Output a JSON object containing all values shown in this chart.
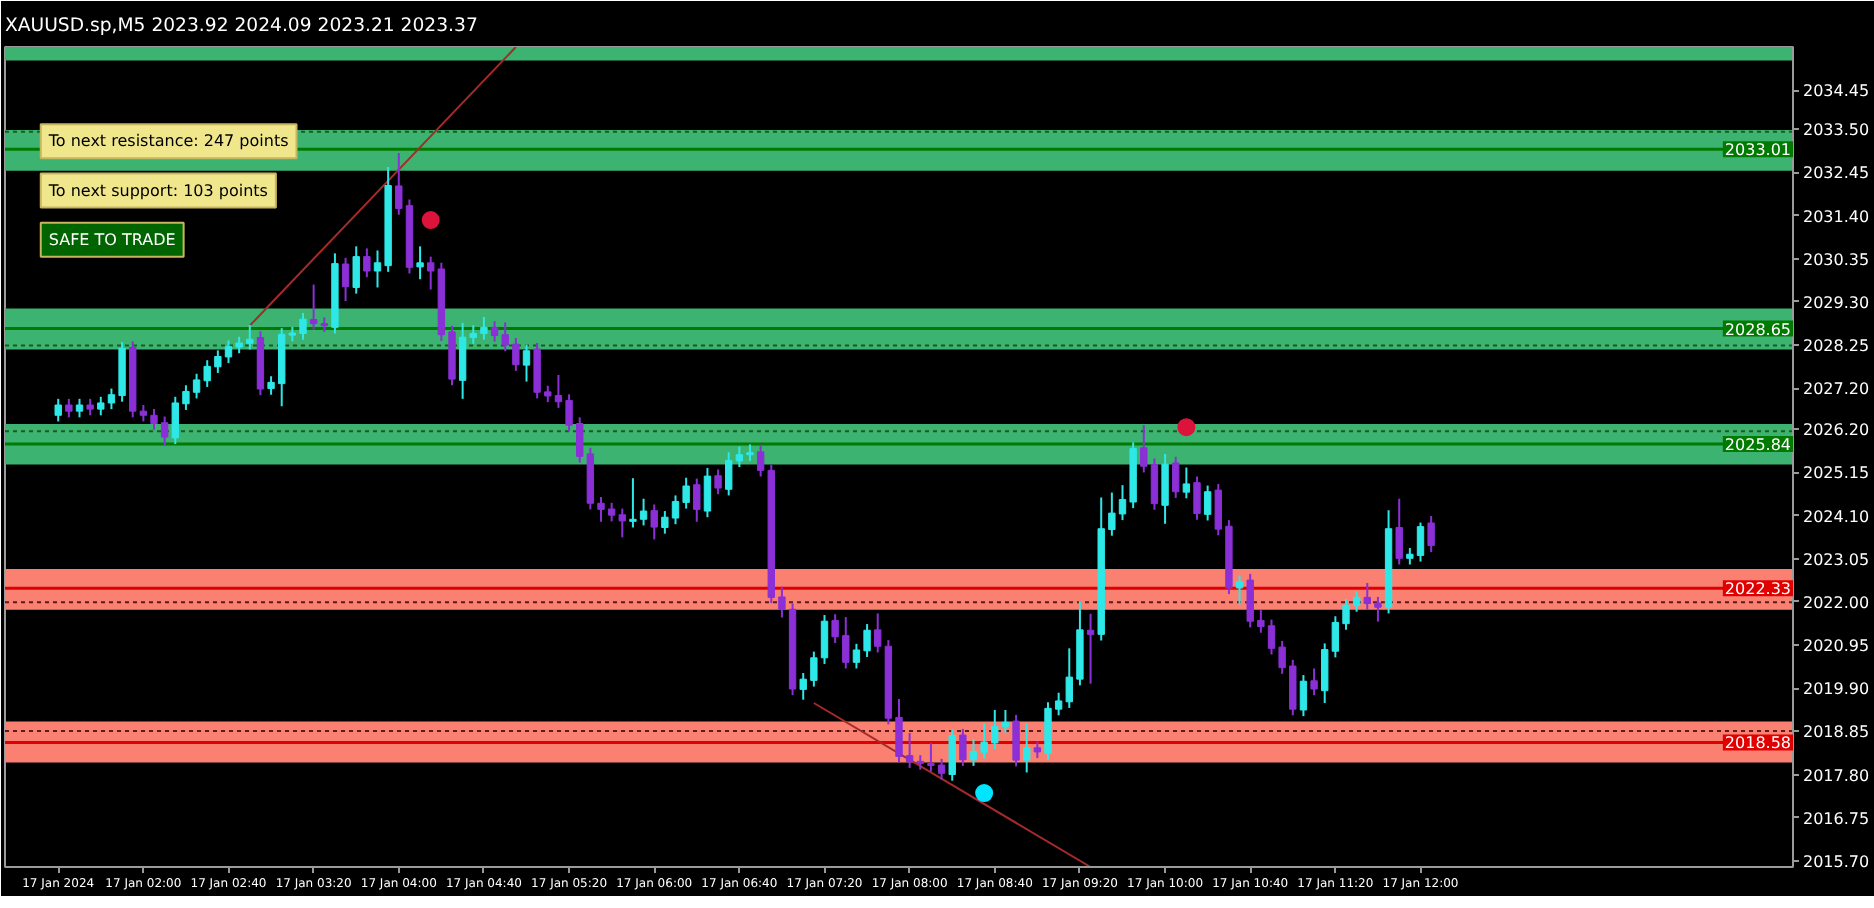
{
  "chart_data": {
    "type": "candlestick",
    "title": "XAUUSD.sp,M5 2023.92 2024.09 2023.21 2023.37",
    "x": [
      "2024-01-17T01:20",
      "2024-01-17T01:25",
      "2024-01-17T01:30",
      "2024-01-17T01:35",
      "2024-01-17T01:40",
      "2024-01-17T01:45",
      "2024-01-17T01:50",
      "2024-01-17T01:55",
      "2024-01-17T02:00",
      "2024-01-17T02:05",
      "2024-01-17T02:10",
      "2024-01-17T02:15",
      "2024-01-17T02:20",
      "2024-01-17T02:25",
      "2024-01-17T02:30",
      "2024-01-17T02:35",
      "2024-01-17T02:40",
      "2024-01-17T02:45",
      "2024-01-17T02:50",
      "2024-01-17T02:55",
      "2024-01-17T03:00",
      "2024-01-17T03:05",
      "2024-01-17T03:10",
      "2024-01-17T03:15",
      "2024-01-17T03:20",
      "2024-01-17T03:25",
      "2024-01-17T03:30",
      "2024-01-17T03:35",
      "2024-01-17T03:40",
      "2024-01-17T03:45",
      "2024-01-17T03:50",
      "2024-01-17T03:55",
      "2024-01-17T04:00",
      "2024-01-17T04:05",
      "2024-01-17T04:10",
      "2024-01-17T04:15",
      "2024-01-17T04:20",
      "2024-01-17T04:25",
      "2024-01-17T04:30",
      "2024-01-17T04:35",
      "2024-01-17T04:40",
      "2024-01-17T04:45",
      "2024-01-17T04:50",
      "2024-01-17T04:55",
      "2024-01-17T05:00",
      "2024-01-17T05:05",
      "2024-01-17T05:10",
      "2024-01-17T05:15",
      "2024-01-17T05:20",
      "2024-01-17T05:25",
      "2024-01-17T05:30",
      "2024-01-17T05:35",
      "2024-01-17T05:40",
      "2024-01-17T05:45",
      "2024-01-17T05:50",
      "2024-01-17T05:55",
      "2024-01-17T06:00",
      "2024-01-17T06:05",
      "2024-01-17T06:10",
      "2024-01-17T06:15",
      "2024-01-17T06:20",
      "2024-01-17T06:25",
      "2024-01-17T06:30",
      "2024-01-17T06:35",
      "2024-01-17T06:40",
      "2024-01-17T06:45",
      "2024-01-17T06:50",
      "2024-01-17T06:55",
      "2024-01-17T07:00",
      "2024-01-17T07:05",
      "2024-01-17T07:10",
      "2024-01-17T07:15",
      "2024-01-17T07:20",
      "2024-01-17T07:25",
      "2024-01-17T07:30",
      "2024-01-17T07:35",
      "2024-01-17T07:40",
      "2024-01-17T07:45",
      "2024-01-17T07:50",
      "2024-01-17T07:55",
      "2024-01-17T08:00",
      "2024-01-17T08:05",
      "2024-01-17T08:10",
      "2024-01-17T08:15",
      "2024-01-17T08:20",
      "2024-01-17T08:25",
      "2024-01-17T08:30",
      "2024-01-17T08:35",
      "2024-01-17T08:40",
      "2024-01-17T08:45",
      "2024-01-17T08:50",
      "2024-01-17T08:55",
      "2024-01-17T09:00",
      "2024-01-17T09:05",
      "2024-01-17T09:10",
      "2024-01-17T09:15",
      "2024-01-17T09:20",
      "2024-01-17T09:25",
      "2024-01-17T09:30",
      "2024-01-17T09:35",
      "2024-01-17T09:40",
      "2024-01-17T09:45",
      "2024-01-17T09:50",
      "2024-01-17T09:55",
      "2024-01-17T10:00",
      "2024-01-17T10:05",
      "2024-01-17T10:10",
      "2024-01-17T10:15",
      "2024-01-17T10:20",
      "2024-01-17T10:25",
      "2024-01-17T10:30",
      "2024-01-17T10:35",
      "2024-01-17T10:40",
      "2024-01-17T10:45",
      "2024-01-17T10:50",
      "2024-01-17T10:55",
      "2024-01-17T11:00",
      "2024-01-17T11:05",
      "2024-01-17T11:10",
      "2024-01-17T11:15",
      "2024-01-17T11:20",
      "2024-01-17T11:25",
      "2024-01-17T11:30",
      "2024-01-17T11:35",
      "2024-01-17T11:40",
      "2024-01-17T11:45",
      "2024-01-17T11:50",
      "2024-01-17T11:55",
      "2024-01-17T12:00",
      "2024-01-17T12:05"
    ],
    "ohlc": [
      [
        2026.54,
        2026.94,
        2026.39,
        2026.79
      ],
      [
        2026.79,
        2026.94,
        2026.49,
        2026.64
      ],
      [
        2026.64,
        2026.94,
        2026.49,
        2026.79
      ],
      [
        2026.79,
        2026.94,
        2026.54,
        2026.69
      ],
      [
        2026.69,
        2026.99,
        2026.54,
        2026.84
      ],
      [
        2026.84,
        2027.19,
        2026.69,
        2027.04
      ],
      [
        2027.02,
        2028.32,
        2026.87,
        2028.17
      ],
      [
        2028.19,
        2028.34,
        2026.49,
        2026.64
      ],
      [
        2026.64,
        2026.79,
        2026.39,
        2026.54
      ],
      [
        2026.54,
        2026.69,
        2026.19,
        2026.34
      ],
      [
        2026.36,
        2026.51,
        2025.81,
        2026.01
      ],
      [
        2025.99,
        2026.99,
        2025.84,
        2026.84
      ],
      [
        2026.82,
        2027.27,
        2026.67,
        2027.12
      ],
      [
        2027.1,
        2027.55,
        2026.95,
        2027.4
      ],
      [
        2027.38,
        2027.88,
        2027.23,
        2027.73
      ],
      [
        2027.72,
        2028.12,
        2027.57,
        2027.97
      ],
      [
        2027.96,
        2028.36,
        2027.81,
        2028.21
      ],
      [
        2028.2,
        2028.45,
        2028.05,
        2028.3
      ],
      [
        2028.29,
        2028.74,
        2028.14,
        2028.39
      ],
      [
        2028.43,
        2028.58,
        2027.03,
        2027.18
      ],
      [
        2027.19,
        2027.49,
        2027.04,
        2027.34
      ],
      [
        2027.31,
        2028.66,
        2026.76,
        2028.51
      ],
      [
        2028.49,
        2028.69,
        2028.34,
        2028.54
      ],
      [
        2028.53,
        2029.03,
        2028.38,
        2028.88
      ],
      [
        2028.87,
        2029.72,
        2028.62,
        2028.77
      ],
      [
        2028.77,
        2028.92,
        2028.57,
        2028.72
      ],
      [
        2028.68,
        2030.48,
        2028.53,
        2030.23
      ],
      [
        2030.22,
        2030.37,
        2029.32,
        2029.67
      ],
      [
        2029.65,
        2030.65,
        2029.5,
        2030.4
      ],
      [
        2030.4,
        2030.6,
        2029.9,
        2030.05
      ],
      [
        2030.05,
        2030.55,
        2029.65,
        2030.25
      ],
      [
        2030.18,
        2032.58,
        2030.03,
        2032.13
      ],
      [
        2032.12,
        2032.92,
        2031.42,
        2031.57
      ],
      [
        2031.64,
        2031.79,
        2029.99,
        2030.14
      ],
      [
        2030.15,
        2030.65,
        2029.85,
        2030.25
      ],
      [
        2030.25,
        2030.4,
        2029.6,
        2030.05
      ],
      [
        2030.1,
        2030.25,
        2028.35,
        2028.5
      ],
      [
        2028.57,
        2028.72,
        2027.27,
        2027.42
      ],
      [
        2027.39,
        2028.79,
        2026.94,
        2028.44
      ],
      [
        2028.43,
        2028.73,
        2028.28,
        2028.53
      ],
      [
        2028.53,
        2028.93,
        2028.38,
        2028.68
      ],
      [
        2028.68,
        2028.83,
        2028.33,
        2028.48
      ],
      [
        2028.5,
        2028.8,
        2028.1,
        2028.25
      ],
      [
        2028.27,
        2028.42,
        2027.62,
        2027.77
      ],
      [
        2027.76,
        2028.26,
        2027.36,
        2028.11
      ],
      [
        2028.15,
        2028.3,
        2026.95,
        2027.1
      ],
      [
        2027.11,
        2027.26,
        2026.86,
        2027.01
      ],
      [
        2027.02,
        2027.52,
        2026.72,
        2026.87
      ],
      [
        2026.9,
        2027.05,
        2026.15,
        2026.3
      ],
      [
        2026.34,
        2026.49,
        2025.39,
        2025.54
      ],
      [
        2025.6,
        2025.75,
        2024.25,
        2024.4
      ],
      [
        2024.4,
        2024.55,
        2023.95,
        2024.25
      ],
      [
        2024.26,
        2024.41,
        2023.96,
        2024.11
      ],
      [
        2024.12,
        2024.27,
        2023.57,
        2023.97
      ],
      [
        2023.96,
        2025.01,
        2023.81,
        2024.01
      ],
      [
        2024.01,
        2024.51,
        2023.86,
        2024.21
      ],
      [
        2024.22,
        2024.37,
        2023.52,
        2023.82
      ],
      [
        2023.81,
        2024.21,
        2023.66,
        2024.06
      ],
      [
        2024.04,
        2024.59,
        2023.89,
        2024.44
      ],
      [
        2024.42,
        2025.02,
        2024.27,
        2024.82
      ],
      [
        2024.85,
        2025.0,
        2023.95,
        2024.25
      ],
      [
        2024.21,
        2025.26,
        2024.06,
        2025.06
      ],
      [
        2025.07,
        2025.22,
        2024.62,
        2024.77
      ],
      [
        2024.74,
        2025.64,
        2024.59,
        2025.44
      ],
      [
        2025.43,
        2025.78,
        2025.28,
        2025.58
      ],
      [
        2025.58,
        2025.83,
        2025.43,
        2025.63
      ],
      [
        2025.65,
        2025.8,
        2025.05,
        2025.2
      ],
      [
        2025.2,
        2025.34,
        2021.97,
        2022.11
      ],
      [
        2022.12,
        2022.37,
        2021.62,
        2021.82
      ],
      [
        2021.82,
        2021.96,
        2019.73,
        2019.88
      ],
      [
        2019.87,
        2020.27,
        2019.62,
        2020.12
      ],
      [
        2020.09,
        2020.79,
        2019.94,
        2020.64
      ],
      [
        2020.64,
        2021.68,
        2020.49,
        2021.53
      ],
      [
        2021.55,
        2021.7,
        2021.0,
        2021.15
      ],
      [
        2021.18,
        2021.63,
        2020.38,
        2020.53
      ],
      [
        2020.53,
        2020.98,
        2020.38,
        2020.83
      ],
      [
        2020.81,
        2021.46,
        2020.66,
        2021.31
      ],
      [
        2021.32,
        2021.72,
        2020.77,
        2020.92
      ],
      [
        2020.92,
        2021.07,
        2019.02,
        2019.17
      ],
      [
        2019.19,
        2019.64,
        2018.09,
        2018.24
      ],
      [
        2018.26,
        2018.81,
        2017.96,
        2018.11
      ],
      [
        2018.12,
        2018.27,
        2017.92,
        2018.07
      ],
      [
        2018.07,
        2018.57,
        2017.87,
        2018.02
      ],
      [
        2018.03,
        2018.18,
        2017.68,
        2017.83
      ],
      [
        2017.8,
        2018.9,
        2017.65,
        2018.75
      ],
      [
        2018.76,
        2018.91,
        2018.01,
        2018.16
      ],
      [
        2018.16,
        2018.66,
        2018.01,
        2018.36
      ],
      [
        2018.34,
        2019.04,
        2018.19,
        2018.59
      ],
      [
        2018.57,
        2019.37,
        2018.42,
        2018.97
      ],
      [
        2018.97,
        2019.37,
        2018.82,
        2019.07
      ],
      [
        2019.1,
        2019.25,
        2018.0,
        2018.15
      ],
      [
        2018.15,
        2019.05,
        2017.85,
        2018.45
      ],
      [
        2018.45,
        2018.6,
        2018.2,
        2018.35
      ],
      [
        2018.31,
        2019.56,
        2018.16,
        2019.41
      ],
      [
        2019.39,
        2019.79,
        2019.24,
        2019.59
      ],
      [
        2019.57,
        2020.87,
        2019.42,
        2020.17
      ],
      [
        2020.12,
        2022.02,
        2019.97,
        2021.32
      ],
      [
        2021.31,
        2021.71,
        2020.01,
        2021.21
      ],
      [
        2021.21,
        2024.54,
        2021.06,
        2023.78
      ],
      [
        2023.76,
        2024.66,
        2023.61,
        2024.16
      ],
      [
        2024.14,
        2024.84,
        2023.99,
        2024.49
      ],
      [
        2024.43,
        2025.88,
        2024.28,
        2025.73
      ],
      [
        2025.75,
        2026.3,
        2025.15,
        2025.3
      ],
      [
        2025.34,
        2025.49,
        2024.24,
        2024.39
      ],
      [
        2024.35,
        2025.6,
        2023.9,
        2025.35
      ],
      [
        2025.38,
        2025.53,
        2024.53,
        2024.68
      ],
      [
        2024.67,
        2025.27,
        2024.52,
        2024.87
      ],
      [
        2024.9,
        2025.05,
        2024.0,
        2024.15
      ],
      [
        2024.13,
        2024.83,
        2023.98,
        2024.68
      ],
      [
        2024.72,
        2024.87,
        2023.62,
        2023.77
      ],
      [
        2023.84,
        2023.99,
        2022.19,
        2022.34
      ],
      [
        2022.34,
        2022.64,
        2021.94,
        2022.49
      ],
      [
        2022.53,
        2022.68,
        2021.38,
        2021.53
      ],
      [
        2021.55,
        2021.8,
        2021.25,
        2021.4
      ],
      [
        2021.42,
        2021.57,
        2020.72,
        2020.87
      ],
      [
        2020.9,
        2021.05,
        2020.25,
        2020.4
      ],
      [
        2020.44,
        2020.59,
        2019.24,
        2019.39
      ],
      [
        2019.37,
        2020.22,
        2019.22,
        2020.07
      ],
      [
        2020.08,
        2020.38,
        2019.73,
        2019.88
      ],
      [
        2019.84,
        2020.99,
        2019.54,
        2020.84
      ],
      [
        2020.8,
        2021.65,
        2020.65,
        2021.5
      ],
      [
        2021.47,
        2022.07,
        2021.32,
        2021.92
      ],
      [
        2021.91,
        2022.26,
        2021.76,
        2022.11
      ],
      [
        2022.11,
        2022.46,
        2021.81,
        2021.96
      ],
      [
        2021.97,
        2022.12,
        2021.52,
        2021.87
      ],
      [
        2021.87,
        2024.23,
        2021.72,
        2023.78
      ],
      [
        2023.81,
        2024.51,
        2022.91,
        2023.06
      ],
      [
        2023.06,
        2023.31,
        2022.91,
        2023.16
      ],
      [
        2023.13,
        2023.93,
        2022.98,
        2023.83
      ],
      [
        2023.92,
        2024.09,
        2023.21,
        2023.37
      ]
    ],
    "colors": [
      "#2ee8e8",
      "#8b2fd6",
      "#2ee8e8",
      "#8b2fd6",
      "#2ee8e8",
      "#2ee8e8",
      "#2ee8e8",
      "#8b2fd6",
      "#8b2fd6",
      "#8b2fd6",
      "#8b2fd6",
      "#2ee8e8",
      "#2ee8e8",
      "#2ee8e8",
      "#2ee8e8",
      "#2ee8e8",
      "#2ee8e8",
      "#2ee8e8",
      "#2ee8e8",
      "#8b2fd6",
      "#2ee8e8",
      "#2ee8e8",
      "#2ee8e8",
      "#2ee8e8",
      "#8b2fd6",
      "#8b2fd6",
      "#2ee8e8",
      "#8b2fd6",
      "#2ee8e8",
      "#8b2fd6",
      "#2ee8e8",
      "#2ee8e8",
      "#8b2fd6",
      "#8b2fd6",
      "#2ee8e8",
      "#8b2fd6",
      "#8b2fd6",
      "#8b2fd6",
      "#2ee8e8",
      "#2ee8e8",
      "#2ee8e8",
      "#8b2fd6",
      "#8b2fd6",
      "#8b2fd6",
      "#2ee8e8",
      "#8b2fd6",
      "#8b2fd6",
      "#8b2fd6",
      "#8b2fd6",
      "#8b2fd6",
      "#8b2fd6",
      "#8b2fd6",
      "#8b2fd6",
      "#8b2fd6",
      "#2ee8e8",
      "#2ee8e8",
      "#8b2fd6",
      "#2ee8e8",
      "#2ee8e8",
      "#2ee8e8",
      "#8b2fd6",
      "#2ee8e8",
      "#8b2fd6",
      "#2ee8e8",
      "#2ee8e8",
      "#2ee8e8",
      "#8b2fd6",
      "#8b2fd6",
      "#8b2fd6",
      "#8b2fd6",
      "#2ee8e8",
      "#2ee8e8",
      "#2ee8e8",
      "#8b2fd6",
      "#8b2fd6",
      "#2ee8e8",
      "#2ee8e8",
      "#8b2fd6",
      "#8b2fd6",
      "#8b2fd6",
      "#8b2fd6",
      "#8b2fd6",
      "#8b2fd6",
      "#8b2fd6",
      "#2ee8e8",
      "#8b2fd6",
      "#2ee8e8",
      "#2ee8e8",
      "#2ee8e8",
      "#2ee8e8",
      "#8b2fd6",
      "#2ee8e8",
      "#8b2fd6",
      "#2ee8e8",
      "#2ee8e8",
      "#2ee8e8",
      "#2ee8e8",
      "#8b2fd6",
      "#2ee8e8",
      "#2ee8e8",
      "#2ee8e8",
      "#2ee8e8",
      "#8b2fd6",
      "#8b2fd6",
      "#2ee8e8",
      "#8b2fd6",
      "#2ee8e8",
      "#8b2fd6",
      "#2ee8e8",
      "#8b2fd6",
      "#8b2fd6",
      "#2ee8e8",
      "#8b2fd6",
      "#8b2fd6",
      "#8b2fd6",
      "#8b2fd6",
      "#8b2fd6",
      "#2ee8e8",
      "#8b2fd6",
      "#2ee8e8",
      "#2ee8e8",
      "#2ee8e8",
      "#2ee8e8",
      "#8b2fd6",
      "#8b2fd6",
      "#2ee8e8",
      "#8b2fd6",
      "#2ee8e8",
      "#2ee8e8",
      "#8b2fd6"
    ],
    "series": [
      {
        "type": "line",
        "color": "#a52a2a",
        "x": [
          "2024-01-17T02:50",
          "2024-01-17T04:55"
        ],
        "values": [
          2028.72,
          2035.5
        ]
      },
      {
        "type": "line",
        "color": "#a52a2a",
        "x": [
          "2024-01-17T07:15",
          "2024-01-17T09:25"
        ],
        "values": [
          2019.54,
          2015.55
        ]
      },
      {
        "type": "scatter",
        "marker": "circle",
        "color": "#dc143c",
        "x": [
          "2024-01-17T04:15",
          "2024-01-17T10:10"
        ],
        "values": [
          2031.29,
          2026.25
        ]
      },
      {
        "type": "scatter",
        "marker": "circle",
        "color": "#00e5ff",
        "x": [
          "2024-01-17T08:35"
        ],
        "values": [
          2017.35
        ]
      }
    ],
    "bands": [
      {
        "axis": "y",
        "from": 2035.17,
        "to": 2035.5,
        "color": "#3cb371"
      },
      {
        "axis": "y",
        "from": 2032.49,
        "to": 2033.48,
        "color": "#3cb371"
      },
      {
        "axis": "y",
        "from": 2028.14,
        "to": 2029.14,
        "color": "#3cb371"
      },
      {
        "axis": "y",
        "from": 2025.34,
        "to": 2026.33,
        "color": "#3cb371"
      },
      {
        "axis": "y",
        "from": 2021.81,
        "to": 2022.8,
        "color": "#fa8072"
      },
      {
        "axis": "y",
        "from": 2018.09,
        "to": 2019.09,
        "color": "#fa8072"
      }
    ],
    "ref_lines": [
      {
        "axis": "y",
        "value": 2033.01,
        "label": "2033.01",
        "color": "#007a00",
        "line_style": "solid"
      },
      {
        "axis": "y",
        "value": 2033.44,
        "color": "#1a5c1a",
        "line_style": "dotted"
      },
      {
        "axis": "y",
        "value": 2028.65,
        "label": "2028.65",
        "color": "#007a00",
        "line_style": "solid"
      },
      {
        "axis": "y",
        "value": 2028.24,
        "color": "#1a5c1a",
        "line_style": "dotted"
      },
      {
        "axis": "y",
        "value": 2025.84,
        "label": "2025.84",
        "color": "#007a00",
        "line_style": "solid"
      },
      {
        "axis": "y",
        "value": 2026.15,
        "color": "#1a5c1a",
        "line_style": "dotted"
      },
      {
        "axis": "y",
        "value": 2022.33,
        "label": "2022.33",
        "color": "#e00000",
        "line_style": "solid"
      },
      {
        "axis": "y",
        "value": 2021.99,
        "color": "#5c1a1a",
        "line_style": "dotted"
      },
      {
        "axis": "y",
        "value": 2018.58,
        "label": "2018.58",
        "color": "#e00000",
        "line_style": "solid"
      },
      {
        "axis": "y",
        "value": 2018.86,
        "color": "#5c1a1a",
        "line_style": "dotted"
      }
    ],
    "annotations": [
      "To next resistance: 247 points",
      "To next support: 103 points",
      "SAFE TO TRADE"
    ],
    "xlim": [
      "2024-01-17T00:55",
      "2024-01-17T14:55"
    ],
    "xticks": [
      {
        "value": "2024-01-17T01:20",
        "label": "17 Jan 2024"
      },
      {
        "value": "2024-01-17T02:00",
        "label": "17 Jan 02:00"
      },
      {
        "value": "2024-01-17T02:40",
        "label": "17 Jan 02:40"
      },
      {
        "value": "2024-01-17T03:20",
        "label": "17 Jan 03:20"
      },
      {
        "value": "2024-01-17T04:00",
        "label": "17 Jan 04:00"
      },
      {
        "value": "2024-01-17T04:40",
        "label": "17 Jan 04:40"
      },
      {
        "value": "2024-01-17T05:20",
        "label": "17 Jan 05:20"
      },
      {
        "value": "2024-01-17T06:00",
        "label": "17 Jan 06:00"
      },
      {
        "value": "2024-01-17T06:40",
        "label": "17 Jan 06:40"
      },
      {
        "value": "2024-01-17T07:20",
        "label": "17 Jan 07:20"
      },
      {
        "value": "2024-01-17T08:00",
        "label": "17 Jan 08:00"
      },
      {
        "value": "2024-01-17T08:40",
        "label": "17 Jan 08:40"
      },
      {
        "value": "2024-01-17T09:20",
        "label": "17 Jan 09:20"
      },
      {
        "value": "2024-01-17T10:00",
        "label": "17 Jan 10:00"
      },
      {
        "value": "2024-01-17T10:40",
        "label": "17 Jan 10:40"
      },
      {
        "value": "2024-01-17T11:20",
        "label": "17 Jan 11:20"
      },
      {
        "value": "2024-01-17T12:00",
        "label": "17 Jan 12:00"
      }
    ],
    "ylim": [
      2015.55,
      2035.5
    ],
    "yticks": [
      {
        "value": 2015.7,
        "label": "2015.70"
      },
      {
        "value": 2016.75,
        "label": "2016.75"
      },
      {
        "value": 2017.8,
        "label": "2017.80"
      },
      {
        "value": 2018.85,
        "label": "2018.85"
      },
      {
        "value": 2019.9,
        "label": "2019.90"
      },
      {
        "value": 2020.95,
        "label": "2020.95"
      },
      {
        "value": 2022.0,
        "label": "2022.00"
      },
      {
        "value": 2023.05,
        "label": "2023.05"
      },
      {
        "value": 2024.1,
        "label": "2024.10"
      },
      {
        "value": 2025.15,
        "label": "2025.15"
      },
      {
        "value": 2026.2,
        "label": "2026.20"
      },
      {
        "value": 2027.2,
        "label": "2027.20"
      },
      {
        "value": 2028.25,
        "label": "2028.25"
      },
      {
        "value": 2029.3,
        "label": "2029.30"
      },
      {
        "value": 2030.35,
        "label": "2030.35"
      },
      {
        "value": 2031.4,
        "label": "2031.40"
      },
      {
        "value": 2032.45,
        "label": "2032.45"
      },
      {
        "value": 2033.5,
        "label": "2033.50"
      },
      {
        "value": 2034.45,
        "label": "2034.45"
      }
    ],
    "grid": false
  }
}
